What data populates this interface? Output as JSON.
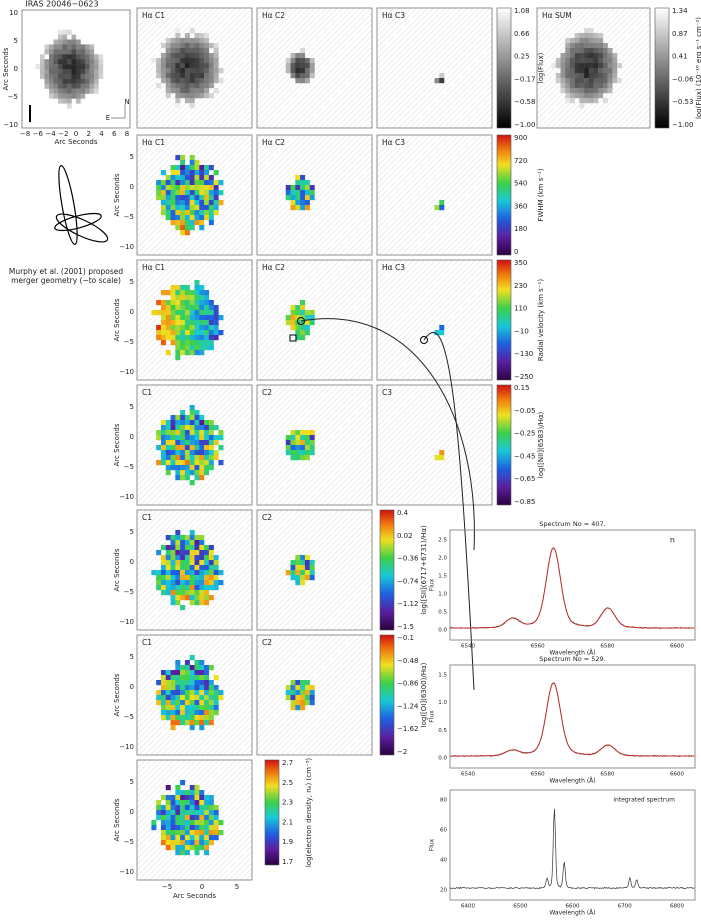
{
  "thumbnail": {
    "title": "IRAS 20046−0623",
    "x_label": "Arc Seconds",
    "y_label": "Arc Seconds",
    "x_ticks": [
      "−8",
      "−6",
      "−4",
      "−2",
      "0",
      "2",
      "4",
      "6",
      "8"
    ],
    "y_ticks": [
      "10",
      "5",
      "0",
      "−5",
      "−10"
    ],
    "compass": [
      "N",
      "E"
    ]
  },
  "caption": [
    "Murphy et al. (2001) proposed",
    "merger geometry (~to scale)"
  ],
  "rows": [
    {
      "panels": [
        "Hα C1",
        "Hα C2",
        "Hα C3"
      ],
      "colorbar": {
        "label": "log(Flux)",
        "ticks": [
          "1.08",
          "0.66",
          "0.25",
          "−0.17",
          "−0.58",
          "−1.00"
        ]
      }
    },
    {
      "panels": [
        "Hα C1",
        "Hα C2",
        "Hα C3"
      ],
      "y_label": "Arc Seconds",
      "y_ticks": [
        "5",
        "0",
        "−5",
        "−10"
      ],
      "colorbar": {
        "label": "FWHM (km s⁻¹)",
        "ticks": [
          "900",
          "720",
          "540",
          "360",
          "180",
          "0"
        ]
      }
    },
    {
      "panels": [
        "Hα C1",
        "Hα C2",
        "Hα C3"
      ],
      "y_label": "Arc Seconds",
      "y_ticks": [
        "5",
        "0",
        "−5",
        "−10"
      ],
      "colorbar": {
        "label": "Radial velocity (km s⁻¹)",
        "ticks": [
          "350",
          "230",
          "110",
          "−10",
          "−130",
          "−250"
        ]
      }
    },
    {
      "panels": [
        "C1",
        "C2",
        "C3"
      ],
      "y_label": "Arc Seconds",
      "y_ticks": [
        "5",
        "0",
        "−5",
        "−10"
      ],
      "colorbar": {
        "label": "log([NII](6583)/Hα)",
        "ticks": [
          "0.15",
          "−0.05",
          "−0.25",
          "−0.45",
          "−0.65",
          "−0.85"
        ]
      }
    },
    {
      "panels": [
        "C1",
        "C2"
      ],
      "y_label": "Arc Seconds",
      "y_ticks": [
        "5",
        "0",
        "−5",
        "−10"
      ],
      "colorbar": {
        "label": "log([SII](6717+6731)/Hα)",
        "ticks": [
          "0.4",
          "0.02",
          "−0.36",
          "−0.74",
          "−1.12",
          "−1.5"
        ]
      }
    },
    {
      "panels": [
        "C1",
        "C2"
      ],
      "y_label": "Arc Seconds",
      "y_ticks": [
        "5",
        "0",
        "−5",
        "−10"
      ],
      "colorbar": {
        "label": "log([OI](6300)/Hα)",
        "ticks": [
          "−0.1",
          "−0.48",
          "−0.86",
          "−1.24",
          "−1.62",
          "−2"
        ]
      }
    },
    {
      "panels": [],
      "y_label": "Arc Seconds",
      "y_ticks": [
        "5",
        "0",
        "−5",
        "−10"
      ],
      "colorbar": {
        "label": "log(electron density, nₑ) (cm⁻³)",
        "ticks": [
          "2.7",
          "2.5",
          "2.3",
          "2.1",
          "1.9",
          "1.7"
        ]
      }
    }
  ],
  "sum_panel": {
    "label": "Hα SUM",
    "colorbar": {
      "label": "log(Flux) (10⁻¹⁶ erg s⁻¹ cm⁻²)",
      "ticks": [
        "1.34",
        "0.87",
        "0.41",
        "−0.06",
        "−0.53",
        "−1.00"
      ]
    }
  },
  "bottom_axis": {
    "x_label": "Arc Seconds",
    "x_ticks": [
      "−5",
      "0",
      "5"
    ]
  },
  "spectra": [
    {
      "title": "Spectrum No = 407.",
      "annotation": "n",
      "y_label": "Flux",
      "x_label": "Wavelength (Å)",
      "y_ticks": [
        "2.5",
        "2.0",
        "1.5",
        "1.0",
        "0.5",
        "0.0"
      ],
      "x_ticks": [
        "6540",
        "6560",
        "6580",
        "6600"
      ]
    },
    {
      "title": "Spectrum No = 529.",
      "y_label": "Flux",
      "x_label": "Wavelength (Å)",
      "y_ticks": [
        "1.5",
        "1.0",
        "0.5",
        "0.0"
      ],
      "x_ticks": [
        "6540",
        "6560",
        "6580",
        "6600"
      ]
    },
    {
      "annotation": "integrated spectrum",
      "y_label": "Flux",
      "x_label": "Wavelength (Å)",
      "y_ticks": [
        "80",
        "60",
        "40",
        "20"
      ],
      "x_ticks": [
        "6400",
        "6500",
        "6600",
        "6700",
        "6800"
      ]
    }
  ]
}
